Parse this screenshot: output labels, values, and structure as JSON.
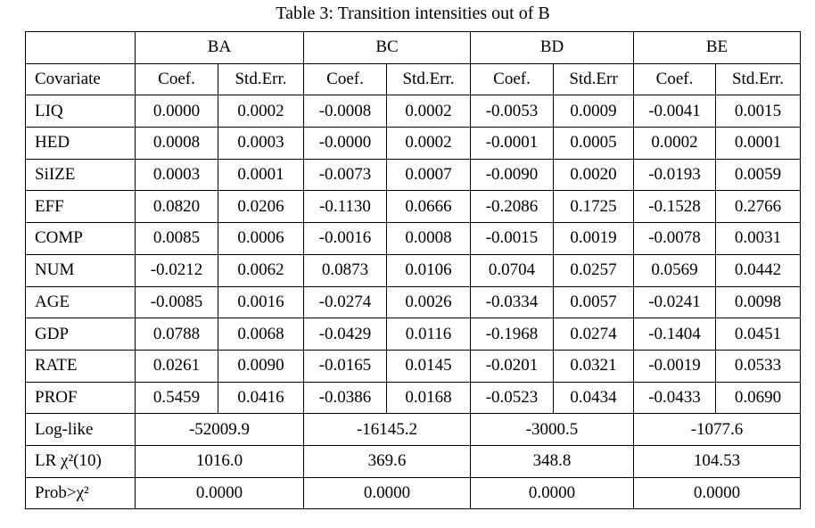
{
  "caption": "Table 3: Transition intensities out of B",
  "table": {
    "groups": [
      "BA",
      "BC",
      "BD",
      "BE"
    ],
    "header": [
      "Covariate",
      "Coef.",
      "Std.Err.",
      "Coef.",
      "Std.Err.",
      "Coef.",
      "Std.Err",
      "Coef.",
      "Std.Err."
    ],
    "rows": [
      [
        "LIQ",
        "0.0000",
        "0.0002",
        "-0.0008",
        "0.0002",
        "-0.0053",
        "0.0009",
        "-0.0041",
        "0.0015"
      ],
      [
        "HED",
        "0.0008",
        "0.0003",
        "-0.0000",
        "0.0002",
        "-0.0001",
        "0.0005",
        "0.0002",
        "0.0001"
      ],
      [
        "SiIZE",
        "0.0003",
        "0.0001",
        "-0.0073",
        "0.0007",
        "-0.0090",
        "0.0020",
        "-0.0193",
        "0.0059"
      ],
      [
        "EFF",
        "0.0820",
        "0.0206",
        "-0.1130",
        "0.0666",
        "-0.2086",
        "0.1725",
        "-0.1528",
        "0.2766"
      ],
      [
        "COMP",
        "0.0085",
        "0.0006",
        "-0.0016",
        "0.0008",
        "-0.0015",
        "0.0019",
        "-0.0078",
        "0.0031"
      ],
      [
        "NUM",
        "-0.0212",
        "0.0062",
        "0.0873",
        "0.0106",
        "0.0704",
        "0.0257",
        "0.0569",
        "0.0442"
      ],
      [
        "AGE",
        "-0.0085",
        "0.0016",
        "-0.0274",
        "0.0026",
        "-0.0334",
        "0.0057",
        "-0.0241",
        "0.0098"
      ],
      [
        "GDP",
        "0.0788",
        "0.0068",
        "-0.0429",
        "0.0116",
        "-0.1968",
        "0.0274",
        "-0.1404",
        "0.0451"
      ],
      [
        "RATE",
        "0.0261",
        "0.0090",
        "-0.0165",
        "0.0145",
        "-0.0201",
        "0.0321",
        "-0.0019",
        "0.0533"
      ],
      [
        "PROF",
        "0.5459",
        "0.0416",
        "-0.0386",
        "0.0168",
        "-0.0523",
        "0.0434",
        "-0.0433",
        "0.0690"
      ]
    ],
    "summary": [
      [
        "Log-like",
        "-52009.9",
        "-16145.2",
        "-3000.5",
        "-1077.6"
      ],
      [
        "LR χ²(10)",
        "1016.0",
        "369.6",
        "348.8",
        "104.53"
      ],
      [
        "Prob>χ²",
        "0.0000",
        "0.0000",
        "0.0000",
        "0.0000"
      ]
    ]
  }
}
